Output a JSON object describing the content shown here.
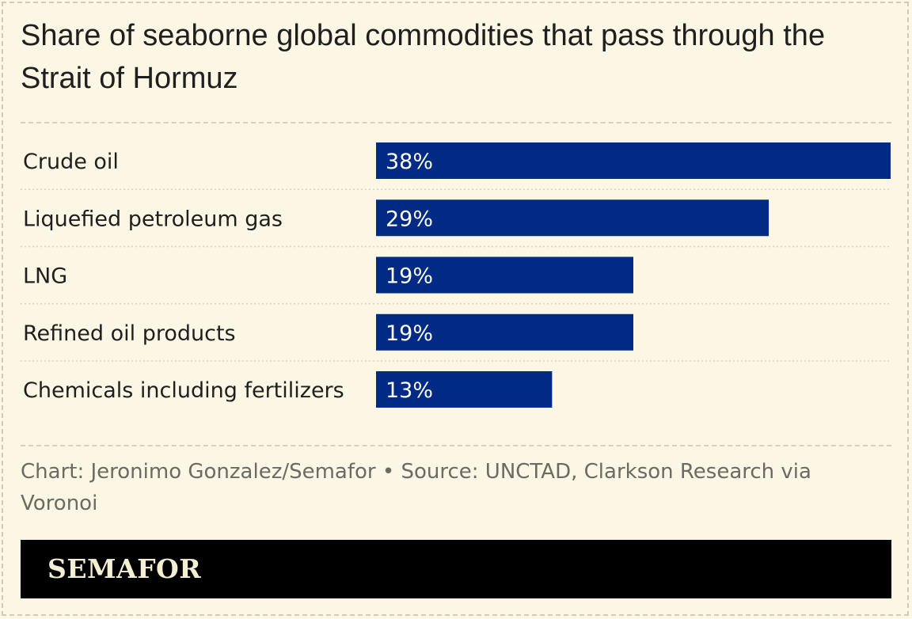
{
  "title": "Share of seaborne global commodities that pass through the Strait of Hormuz",
  "source": "Chart: Jeronimo Gonzalez/Semafor • Source: UNCTAD, Clarkson Research via Voronoi",
  "brand": "SEMAFOR",
  "colors": {
    "background": "#fbf7e4",
    "bar": "#002a84",
    "footer": "#000000",
    "logo": "#f4eed2"
  },
  "chart_data": {
    "type": "bar",
    "orientation": "horizontal",
    "categories": [
      "Crude oil",
      "Liquefied petroleum gas",
      "LNG",
      "Refined oil products",
      "Chemicals including fertilizers"
    ],
    "values": [
      38,
      29,
      19,
      19,
      13
    ],
    "value_labels": [
      "38%",
      "29%",
      "19%",
      "19%",
      "13%"
    ],
    "unit": "%",
    "xlim": [
      0,
      38
    ],
    "grid": false,
    "legend": "none"
  }
}
